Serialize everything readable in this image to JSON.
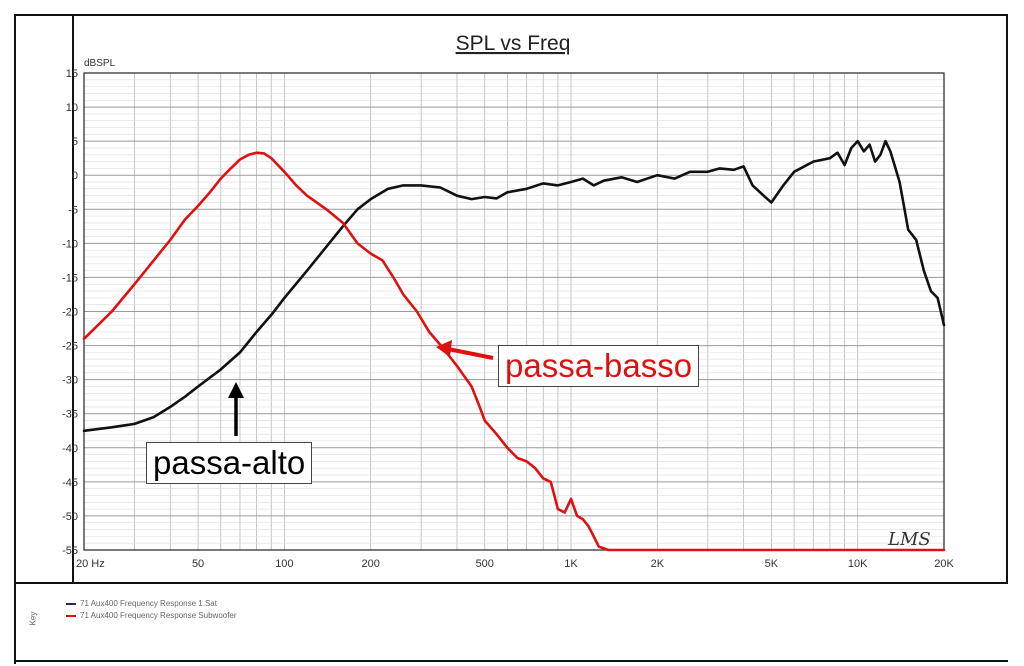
{
  "chart_data": {
    "type": "line",
    "title": "SPL vs Freq",
    "ylabel": "dBSPL",
    "x_scale": "log",
    "xlim": [
      20,
      20000
    ],
    "ylim": [
      -55,
      15
    ],
    "grid": true,
    "x_ticks": [
      {
        "value": 20,
        "label": "20 Hz"
      },
      {
        "value": 50,
        "label": "50"
      },
      {
        "value": 100,
        "label": "100"
      },
      {
        "value": 200,
        "label": "200"
      },
      {
        "value": 500,
        "label": "500"
      },
      {
        "value": 1000,
        "label": "1K"
      },
      {
        "value": 2000,
        "label": "2K"
      },
      {
        "value": 5000,
        "label": "5K"
      },
      {
        "value": 10000,
        "label": "10K"
      },
      {
        "value": 20000,
        "label": "20K"
      }
    ],
    "y_ticks": [
      15,
      10,
      5,
      0,
      -5,
      -10,
      -15,
      -20,
      -25,
      -30,
      -35,
      -40,
      -45,
      -50,
      -55
    ],
    "series": [
      {
        "name": "passa-alto",
        "color": "#111111",
        "points": [
          [
            20,
            -37.5
          ],
          [
            25,
            -37
          ],
          [
            30,
            -36.5
          ],
          [
            35,
            -35.5
          ],
          [
            40,
            -34
          ],
          [
            45,
            -32.5
          ],
          [
            50,
            -31
          ],
          [
            60,
            -28.5
          ],
          [
            70,
            -26
          ],
          [
            80,
            -23
          ],
          [
            90,
            -20.5
          ],
          [
            100,
            -18
          ],
          [
            120,
            -14
          ],
          [
            140,
            -10.5
          ],
          [
            160,
            -7.5
          ],
          [
            180,
            -5
          ],
          [
            200,
            -3.5
          ],
          [
            230,
            -2
          ],
          [
            260,
            -1.5
          ],
          [
            300,
            -1.5
          ],
          [
            350,
            -1.8
          ],
          [
            400,
            -3
          ],
          [
            450,
            -3.5
          ],
          [
            500,
            -3.2
          ],
          [
            550,
            -3.4
          ],
          [
            600,
            -2.5
          ],
          [
            700,
            -2
          ],
          [
            800,
            -1.2
          ],
          [
            900,
            -1.5
          ],
          [
            1000,
            -1
          ],
          [
            1100,
            -0.5
          ],
          [
            1200,
            -1.5
          ],
          [
            1300,
            -0.8
          ],
          [
            1500,
            -0.3
          ],
          [
            1700,
            -1
          ],
          [
            2000,
            0
          ],
          [
            2300,
            -0.5
          ],
          [
            2600,
            0.5
          ],
          [
            3000,
            0.5
          ],
          [
            3300,
            1
          ],
          [
            3700,
            0.8
          ],
          [
            4000,
            1.3
          ],
          [
            4300,
            -1.5
          ],
          [
            4700,
            -3
          ],
          [
            5000,
            -4
          ],
          [
            5500,
            -1.5
          ],
          [
            6000,
            0.5
          ],
          [
            7000,
            2
          ],
          [
            8000,
            2.5
          ],
          [
            8500,
            3.3
          ],
          [
            9000,
            1.5
          ],
          [
            9500,
            4
          ],
          [
            10000,
            5
          ],
          [
            10500,
            3.5
          ],
          [
            11000,
            4.5
          ],
          [
            11500,
            2
          ],
          [
            12000,
            3
          ],
          [
            12500,
            5
          ],
          [
            13000,
            3.5
          ],
          [
            14000,
            -1
          ],
          [
            15000,
            -8
          ],
          [
            16000,
            -9.5
          ],
          [
            17000,
            -14
          ],
          [
            18000,
            -17
          ],
          [
            19000,
            -18
          ],
          [
            20000,
            -22
          ]
        ]
      },
      {
        "name": "passa-basso",
        "color": "#e01010",
        "points": [
          [
            20,
            -24
          ],
          [
            25,
            -20
          ],
          [
            30,
            -16
          ],
          [
            35,
            -12.5
          ],
          [
            40,
            -9.5
          ],
          [
            45,
            -6.5
          ],
          [
            50,
            -4.5
          ],
          [
            55,
            -2.5
          ],
          [
            60,
            -0.5
          ],
          [
            65,
            1
          ],
          [
            70,
            2.3
          ],
          [
            75,
            3
          ],
          [
            80,
            3.3
          ],
          [
            85,
            3.2
          ],
          [
            90,
            2.5
          ],
          [
            100,
            0.5
          ],
          [
            110,
            -1.5
          ],
          [
            120,
            -3
          ],
          [
            140,
            -5
          ],
          [
            160,
            -7
          ],
          [
            180,
            -10
          ],
          [
            200,
            -11.5
          ],
          [
            220,
            -12.5
          ],
          [
            240,
            -15
          ],
          [
            260,
            -17.5
          ],
          [
            290,
            -20
          ],
          [
            320,
            -23
          ],
          [
            360,
            -25.5
          ],
          [
            400,
            -28
          ],
          [
            450,
            -31
          ],
          [
            480,
            -34
          ],
          [
            500,
            -36
          ],
          [
            550,
            -38
          ],
          [
            600,
            -40
          ],
          [
            650,
            -41.5
          ],
          [
            700,
            -42
          ],
          [
            750,
            -43
          ],
          [
            800,
            -44.5
          ],
          [
            850,
            -45
          ],
          [
            900,
            -49
          ],
          [
            950,
            -49.5
          ],
          [
            1000,
            -47.5
          ],
          [
            1050,
            -50
          ],
          [
            1100,
            -50.5
          ],
          [
            1150,
            -51.5
          ],
          [
            1200,
            -53
          ],
          [
            1250,
            -54.5
          ],
          [
            1350,
            -55
          ],
          [
            1500,
            -55
          ],
          [
            2000,
            -55
          ],
          [
            5000,
            -55
          ],
          [
            10000,
            -55
          ],
          [
            20000,
            -55
          ]
        ]
      }
    ],
    "watermark": "LMS"
  },
  "annotations": {
    "passa_basso_label": "passa-basso",
    "passa_alto_label": "passa-alto"
  },
  "legend": {
    "side_label": "Key",
    "rows": [
      {
        "color": "#1a2a6a",
        "text": "71 Aux400 Frequency Response 1.Sat"
      },
      {
        "color": "#e01010",
        "text": "71 Aux400 Frequency Response Subwoofer"
      }
    ]
  }
}
